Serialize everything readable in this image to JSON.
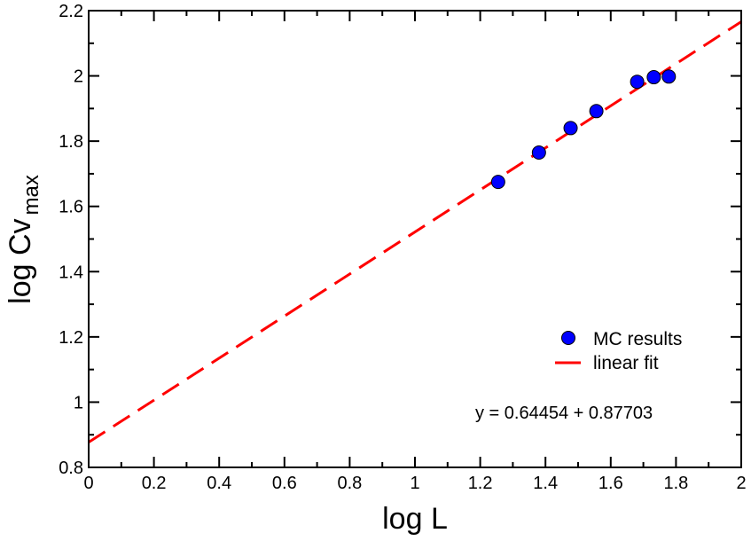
{
  "chart_data": {
    "type": "scatter",
    "title": "",
    "xlabel": "log L",
    "ylabel": "log Cv",
    "ylabel_subscript": "max",
    "xlim": [
      0,
      2
    ],
    "ylim": [
      0.8,
      2.2
    ],
    "xticks": [
      0,
      0.2,
      0.4,
      0.6,
      0.8,
      1,
      1.2,
      1.4,
      1.6,
      1.8,
      2
    ],
    "xtick_labels": [
      "0",
      "0.2",
      "0.4",
      "0.6",
      "0.8",
      "1",
      "1.2",
      "1.4",
      "1.6",
      "1.8",
      "2"
    ],
    "yticks": [
      0.8,
      1,
      1.2,
      1.4,
      1.6,
      1.8,
      2,
      2.2
    ],
    "ytick_labels": [
      "0.8",
      "1",
      "1.2",
      "1.4",
      "1.6",
      "1.8",
      "2",
      "2.2"
    ],
    "grid": false,
    "legend_position": "right",
    "series": [
      {
        "name": "MC results",
        "kind": "scatter",
        "color": "#0000ff",
        "x": [
          1.255,
          1.38,
          1.477,
          1.556,
          1.681,
          1.732,
          1.778
        ],
        "y": [
          1.675,
          1.765,
          1.84,
          1.892,
          1.982,
          1.996,
          1.998
        ]
      },
      {
        "name": "linear fit",
        "kind": "line",
        "style": "dashed",
        "color": "#ff0000",
        "slope": 0.64454,
        "intercept": 0.87703
      }
    ],
    "annotations": [
      {
        "text": "y = 0.64454 + 0.87703"
      }
    ]
  }
}
